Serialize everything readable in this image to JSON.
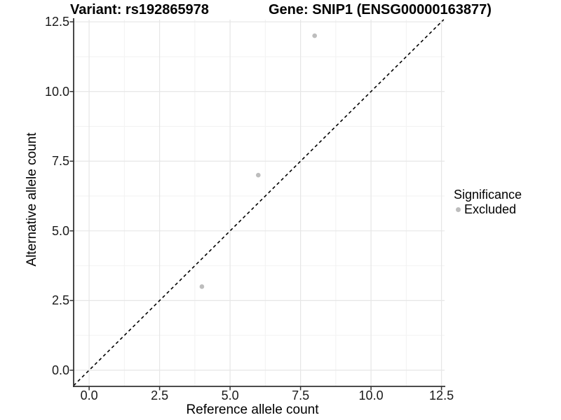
{
  "chart_data": {
    "type": "scatter",
    "title_left": "Variant: rs192865978",
    "title_right": "Gene: SNIP1 (ENSG00000163877)",
    "xlabel": "Reference allele count",
    "ylabel": "Alternative allele count",
    "xlim": [
      -0.55,
      12.61
    ],
    "ylim": [
      -0.58,
      12.58
    ],
    "x_ticks": [
      0,
      2.5,
      5,
      7.5,
      10,
      12.5
    ],
    "x_tick_labels": [
      "0.0",
      "2.5",
      "5.0",
      "7.5",
      "10.0",
      "12.5"
    ],
    "y_ticks": [
      0,
      2.5,
      5,
      7.5,
      10,
      12.5
    ],
    "y_tick_labels": [
      "0.0",
      "2.5",
      "5.0",
      "7.5",
      "10.0",
      "12.5"
    ],
    "x_minor_ticks": [
      1.25,
      3.75,
      6.25,
      8.75,
      11.25
    ],
    "y_minor_ticks": [
      1.25,
      3.75,
      6.25,
      8.75,
      11.25
    ],
    "grid": true,
    "legend_position": "right",
    "reference_line": {
      "type": "identity",
      "slope": 1,
      "intercept": 0,
      "style": "dashed",
      "color": "#000000"
    },
    "series": [
      {
        "name": "Excluded",
        "marker": "circle",
        "color": "#bdbdbd",
        "points": [
          [
            4,
            3
          ],
          [
            6,
            7
          ],
          [
            8,
            12
          ]
        ]
      }
    ],
    "legend": {
      "title": "Significance",
      "items": [
        {
          "label": "Excluded",
          "color": "#bdbdbd"
        }
      ]
    },
    "colors": {
      "axis_line": "#333333",
      "tick_mark": "#333333",
      "tick_label": "#1a1a1a",
      "grid_major": "#e6e6e6",
      "grid_minor": "#f2f2f2",
      "background": "#ffffff"
    }
  }
}
